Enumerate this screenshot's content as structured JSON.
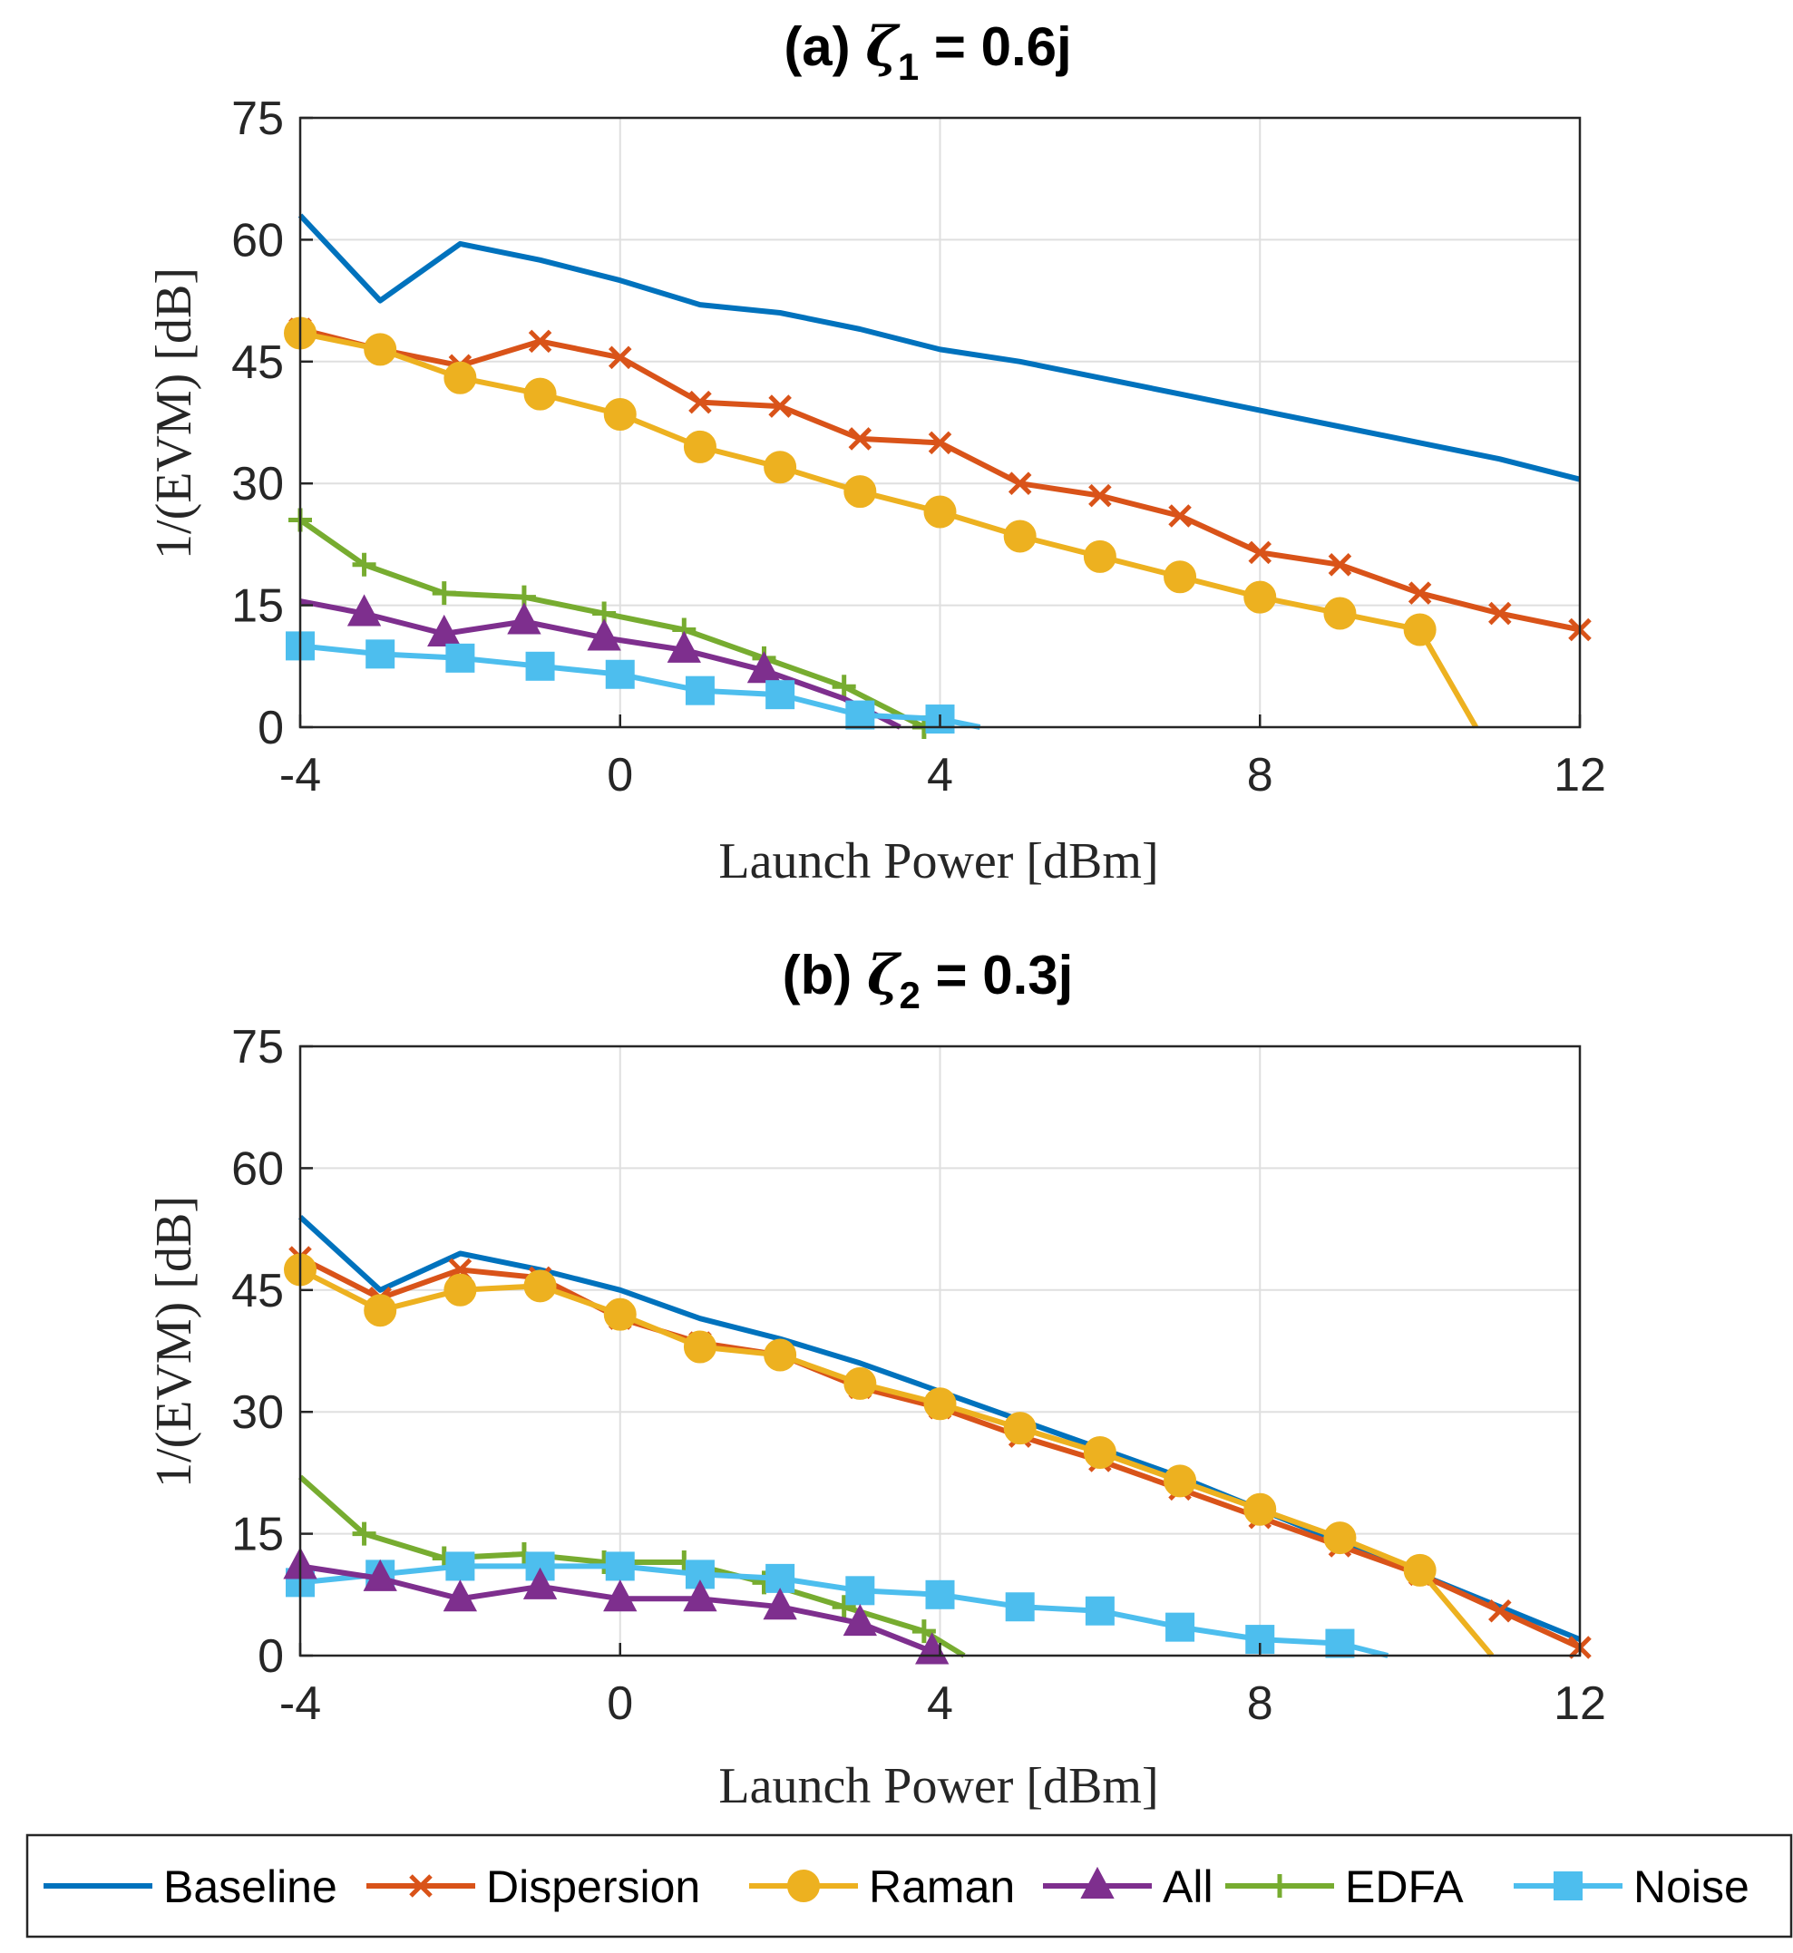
{
  "legend": [
    {
      "key": "baseline",
      "label": "Baseline",
      "color": "#0072BD",
      "marker": "none"
    },
    {
      "key": "dispersion",
      "label": "Dispersion",
      "color": "#D95319",
      "marker": "x"
    },
    {
      "key": "raman",
      "label": "Raman",
      "color": "#EDB120",
      "marker": "circle"
    },
    {
      "key": "all",
      "label": "All",
      "color": "#7E2F8E",
      "marker": "triangle"
    },
    {
      "key": "edfa",
      "label": "EDFA",
      "color": "#77AC30",
      "marker": "plus"
    },
    {
      "key": "noise",
      "label": "Noise",
      "color": "#4DBEEE",
      "marker": "square"
    }
  ],
  "chart_data": [
    {
      "type": "line",
      "title": {
        "prefix": "(a) ",
        "symbol": "ζ",
        "subscript": "1",
        "suffix": " = 0.6j"
      },
      "xlabel": "Launch Power [dBm]",
      "ylabel": "1/(EVM) [dB]",
      "xlim": [
        -4,
        12
      ],
      "ylim": [
        0,
        75
      ],
      "xticks": [
        -4,
        0,
        4,
        8,
        12
      ],
      "xtick_labels": [
        "-4",
        "0",
        "4",
        "8",
        "12"
      ],
      "yticks": [
        0,
        15,
        30,
        45,
        60,
        75
      ],
      "ytick_labels": [
        "0",
        "15",
        "30",
        "45",
        "60",
        "75"
      ],
      "grid": true,
      "series": [
        {
          "key": "baseline",
          "name": "Baseline",
          "x": [
            -4,
            -3,
            -2,
            -1,
            0,
            1,
            2,
            3,
            4,
            5,
            6,
            7,
            8,
            9,
            10,
            11,
            12
          ],
          "y": [
            63,
            52.5,
            59.5,
            57.5,
            55,
            52,
            51,
            49,
            46.5,
            45,
            43,
            41,
            39,
            37,
            35,
            33,
            30.5
          ]
        },
        {
          "key": "dispersion",
          "name": "Dispersion",
          "x": [
            -4,
            -3,
            -2,
            -1,
            0,
            1,
            2,
            3,
            4,
            5,
            6,
            7,
            8,
            9,
            10,
            11,
            12
          ],
          "y": [
            49,
            46.5,
            44.5,
            47.5,
            45.5,
            40,
            39.5,
            35.5,
            35,
            30,
            28.5,
            26,
            21.5,
            20,
            16.5,
            14,
            12
          ]
        },
        {
          "key": "raman",
          "name": "Raman",
          "x": [
            -4,
            -3,
            -2,
            -1,
            0,
            1,
            2,
            3,
            4,
            5,
            6,
            7,
            8,
            9,
            10,
            10.7
          ],
          "y": [
            48.5,
            46.5,
            43,
            41,
            38.5,
            34.5,
            32,
            29,
            26.5,
            23.5,
            21,
            18.5,
            16,
            14,
            12,
            0
          ],
          "markers": [
            true,
            true,
            true,
            true,
            true,
            true,
            true,
            true,
            true,
            true,
            true,
            true,
            true,
            true,
            true,
            false
          ]
        },
        {
          "key": "edfa",
          "name": "EDFA",
          "x": [
            -4,
            -3.2,
            -2.2,
            -1.2,
            -0.2,
            0.8,
            1.8,
            2.8,
            3.8
          ],
          "y": [
            25.5,
            20,
            16.5,
            16,
            14,
            12,
            8.5,
            5,
            0
          ]
        },
        {
          "key": "all",
          "name": "All",
          "x": [
            -4,
            -3.2,
            -2.2,
            -1.2,
            -0.2,
            0.8,
            1.8,
            2.8,
            3.5
          ],
          "y": [
            15.5,
            14,
            11.5,
            13,
            11,
            9.5,
            7,
            3.5,
            0
          ],
          "markers": [
            false,
            true,
            true,
            true,
            true,
            true,
            true,
            false,
            false
          ]
        },
        {
          "key": "noise",
          "name": "Noise",
          "x": [
            -4,
            -3,
            -2,
            -1,
            0,
            1,
            2,
            3,
            4,
            4.5
          ],
          "y": [
            10,
            9,
            8.5,
            7.5,
            6.5,
            4.5,
            4,
            1.5,
            1,
            0
          ],
          "markers": [
            true,
            true,
            true,
            true,
            true,
            true,
            true,
            true,
            true,
            false
          ]
        }
      ]
    },
    {
      "type": "line",
      "title": {
        "prefix": "(b) ",
        "symbol": "ζ",
        "subscript": "2",
        "suffix": " = 0.3j"
      },
      "xlabel": "Launch Power [dBm]",
      "ylabel": "1/(EVM) [dB]",
      "xlim": [
        -4,
        12
      ],
      "ylim": [
        0,
        75
      ],
      "xticks": [
        -4,
        0,
        4,
        8,
        12
      ],
      "xtick_labels": [
        "-4",
        "0",
        "4",
        "8",
        "12"
      ],
      "yticks": [
        0,
        15,
        30,
        45,
        60,
        75
      ],
      "ytick_labels": [
        "0",
        "15",
        "30",
        "45",
        "60",
        "75"
      ],
      "grid": true,
      "series": [
        {
          "key": "baseline",
          "name": "Baseline",
          "x": [
            -4,
            -3,
            -2,
            -1,
            0,
            1,
            2,
            3,
            4,
            5,
            6,
            7,
            8,
            9,
            10,
            11,
            12
          ],
          "y": [
            54,
            45,
            49.5,
            47.5,
            45,
            41.5,
            39,
            36,
            32.5,
            29,
            25.5,
            22,
            18,
            14,
            10,
            6,
            2
          ]
        },
        {
          "key": "dispersion",
          "name": "Dispersion",
          "x": [
            -4,
            -3,
            -2,
            -1,
            0,
            1,
            2,
            3,
            4,
            5,
            6,
            7,
            8,
            9,
            10,
            11,
            12
          ],
          "y": [
            49,
            44,
            47.5,
            46.5,
            41.5,
            38.5,
            37,
            33,
            30.5,
            27,
            24,
            20.5,
            17,
            13.5,
            10,
            5.5,
            1
          ]
        },
        {
          "key": "raman",
          "name": "Raman",
          "x": [
            -4,
            -3,
            -2,
            -1,
            0,
            1,
            2,
            3,
            4,
            5,
            6,
            7,
            8,
            9,
            10,
            10.9
          ],
          "y": [
            47.5,
            42.5,
            45,
            45.5,
            42,
            38,
            37,
            33.5,
            31,
            28,
            25,
            21.5,
            18,
            14.5,
            10.5,
            0
          ],
          "markers": [
            true,
            true,
            true,
            true,
            true,
            true,
            true,
            true,
            true,
            true,
            true,
            true,
            true,
            true,
            true,
            false
          ]
        },
        {
          "key": "edfa",
          "name": "EDFA",
          "x": [
            -4,
            -3.2,
            -2.2,
            -1.2,
            -0.2,
            0.8,
            1.8,
            2.8,
            3.8,
            4.3
          ],
          "y": [
            22,
            15,
            12,
            12.5,
            11.5,
            11.5,
            9,
            6,
            3,
            0
          ],
          "markers": [
            false,
            true,
            true,
            true,
            true,
            true,
            true,
            true,
            true,
            false
          ]
        },
        {
          "key": "noise",
          "name": "Noise",
          "x": [
            -4,
            -3,
            -2,
            -1,
            0,
            1,
            2,
            3,
            4,
            5,
            6,
            7,
            8,
            9,
            9.6
          ],
          "y": [
            9,
            10,
            11,
            11,
            11,
            10,
            9.5,
            8,
            7.5,
            6,
            5.5,
            3.5,
            2,
            1.5,
            0
          ],
          "markers": [
            true,
            true,
            true,
            true,
            true,
            true,
            true,
            true,
            true,
            true,
            true,
            true,
            true,
            true,
            false
          ]
        },
        {
          "key": "all",
          "name": "All",
          "x": [
            -4,
            -3,
            -2,
            -1,
            0,
            1,
            2,
            3,
            3.9
          ],
          "y": [
            11,
            9.5,
            7,
            8.5,
            7,
            7,
            6,
            4,
            0.5
          ]
        }
      ]
    }
  ]
}
